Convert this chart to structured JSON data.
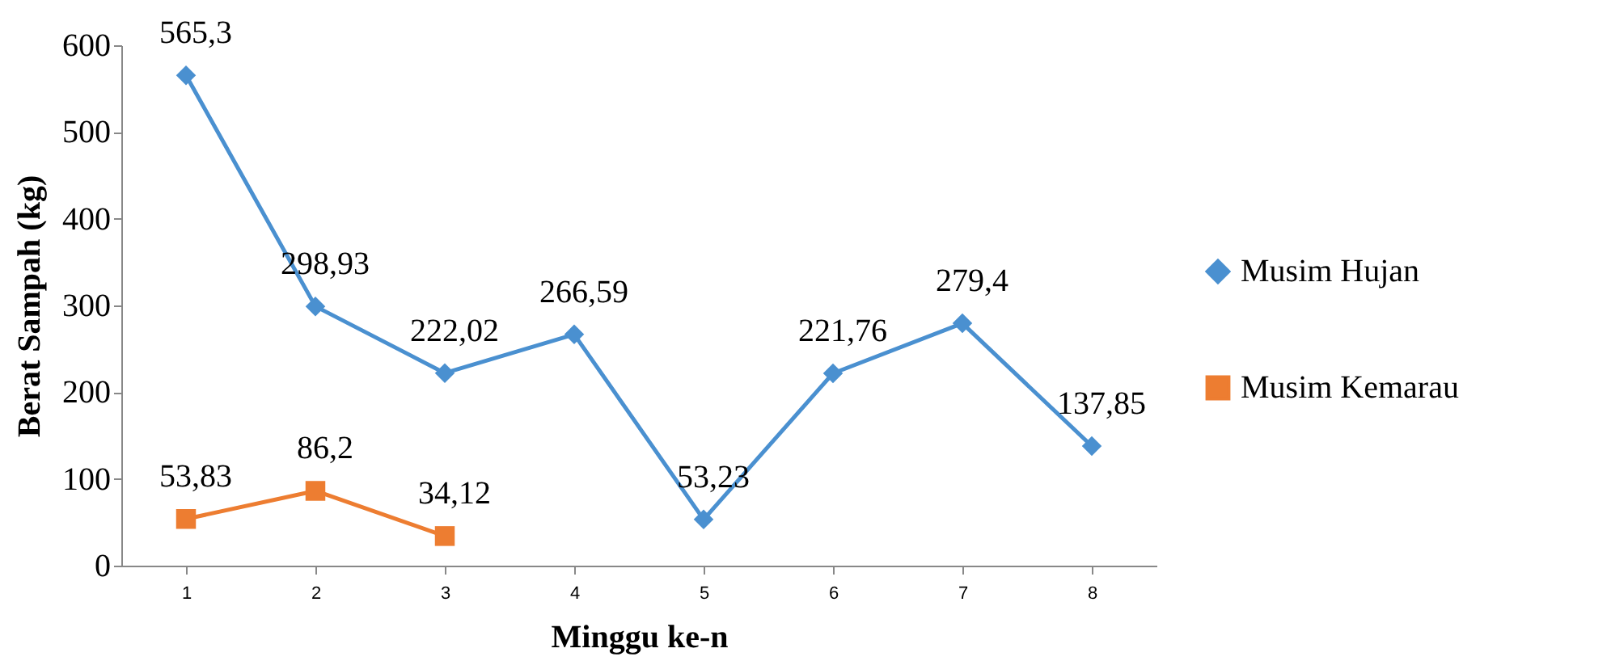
{
  "chart_data": {
    "type": "line",
    "xlabel": "Minggu ke-n",
    "ylabel": "Berat Sampah (kg)",
    "categories": [
      "1",
      "2",
      "3",
      "4",
      "5",
      "6",
      "7",
      "8"
    ],
    "series": [
      {
        "name": "Musim Hujan",
        "color": "#4a90d0",
        "marker": "diamond",
        "values": [
          565.3,
          298.93,
          222.02,
          266.59,
          53.23,
          221.76,
          279.4,
          137.85
        ],
        "value_labels": [
          "565,3",
          "298,93",
          "222,02",
          "266,59",
          "53,23",
          "221,76",
          "279,4",
          "137,85"
        ]
      },
      {
        "name": "Musim Kemarau",
        "color": "#ed7d31",
        "marker": "square",
        "values": [
          53.83,
          86.2,
          34.12,
          null,
          null,
          null,
          null,
          null
        ],
        "value_labels": [
          "53,83",
          "86,2",
          "34,12",
          null,
          null,
          null,
          null,
          null
        ]
      }
    ],
    "ylim": [
      0,
      600
    ],
    "yticks": [
      0,
      100,
      200,
      300,
      400,
      500,
      600
    ],
    "grid": false,
    "legend": "right",
    "line_style": "solid"
  }
}
